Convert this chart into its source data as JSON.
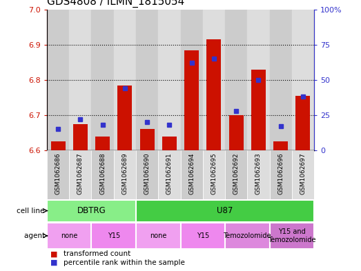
{
  "title": "GDS4808 / ILMN_1815054",
  "samples": [
    "GSM1062686",
    "GSM1062687",
    "GSM1062688",
    "GSM1062689",
    "GSM1062690",
    "GSM1062691",
    "GSM1062694",
    "GSM1062695",
    "GSM1062692",
    "GSM1062693",
    "GSM1062696",
    "GSM1062697"
  ],
  "transformed_count": [
    6.625,
    6.675,
    6.64,
    6.785,
    6.66,
    6.64,
    6.885,
    6.915,
    6.7,
    6.83,
    6.625,
    6.755
  ],
  "percentile_rank": [
    15,
    22,
    18,
    44,
    20,
    18,
    62,
    65,
    28,
    50,
    17,
    38
  ],
  "ylim_left": [
    6.6,
    7.0
  ],
  "ylim_right": [
    0,
    100
  ],
  "yticks_left": [
    6.6,
    6.7,
    6.8,
    6.9,
    7.0
  ],
  "yticks_right": [
    0,
    25,
    50,
    75,
    100
  ],
  "ytick_labels_right": [
    "0",
    "25",
    "50",
    "75",
    "100%"
  ],
  "grid_lines": [
    6.7,
    6.8,
    6.9
  ],
  "bar_color": "#cc1100",
  "dot_color": "#3333cc",
  "cell_line_groups": [
    {
      "label": "DBTRG",
      "start": 0,
      "end": 3,
      "color": "#88ee88"
    },
    {
      "label": "U87",
      "start": 4,
      "end": 11,
      "color": "#44cc44"
    }
  ],
  "agent_groups": [
    {
      "label": "none",
      "start": 0,
      "end": 1,
      "color": "#f0a0f0"
    },
    {
      "label": "Y15",
      "start": 2,
      "end": 3,
      "color": "#ee88ee"
    },
    {
      "label": "none",
      "start": 4,
      "end": 5,
      "color": "#f0a0f0"
    },
    {
      "label": "Y15",
      "start": 6,
      "end": 7,
      "color": "#ee88ee"
    },
    {
      "label": "Temozolomide",
      "start": 8,
      "end": 9,
      "color": "#dd88dd"
    },
    {
      "label": "Y15 and\nTemozolomide",
      "start": 10,
      "end": 11,
      "color": "#cc77cc"
    }
  ],
  "legend_items": [
    {
      "label": "transformed count",
      "color": "#cc1100"
    },
    {
      "label": "percentile rank within the sample",
      "color": "#3333cc"
    }
  ],
  "left_axis_color": "#cc1100",
  "right_axis_color": "#3333cc",
  "bar_bg_colors": [
    "#cccccc",
    "#dddddd"
  ],
  "title_fontsize": 11
}
